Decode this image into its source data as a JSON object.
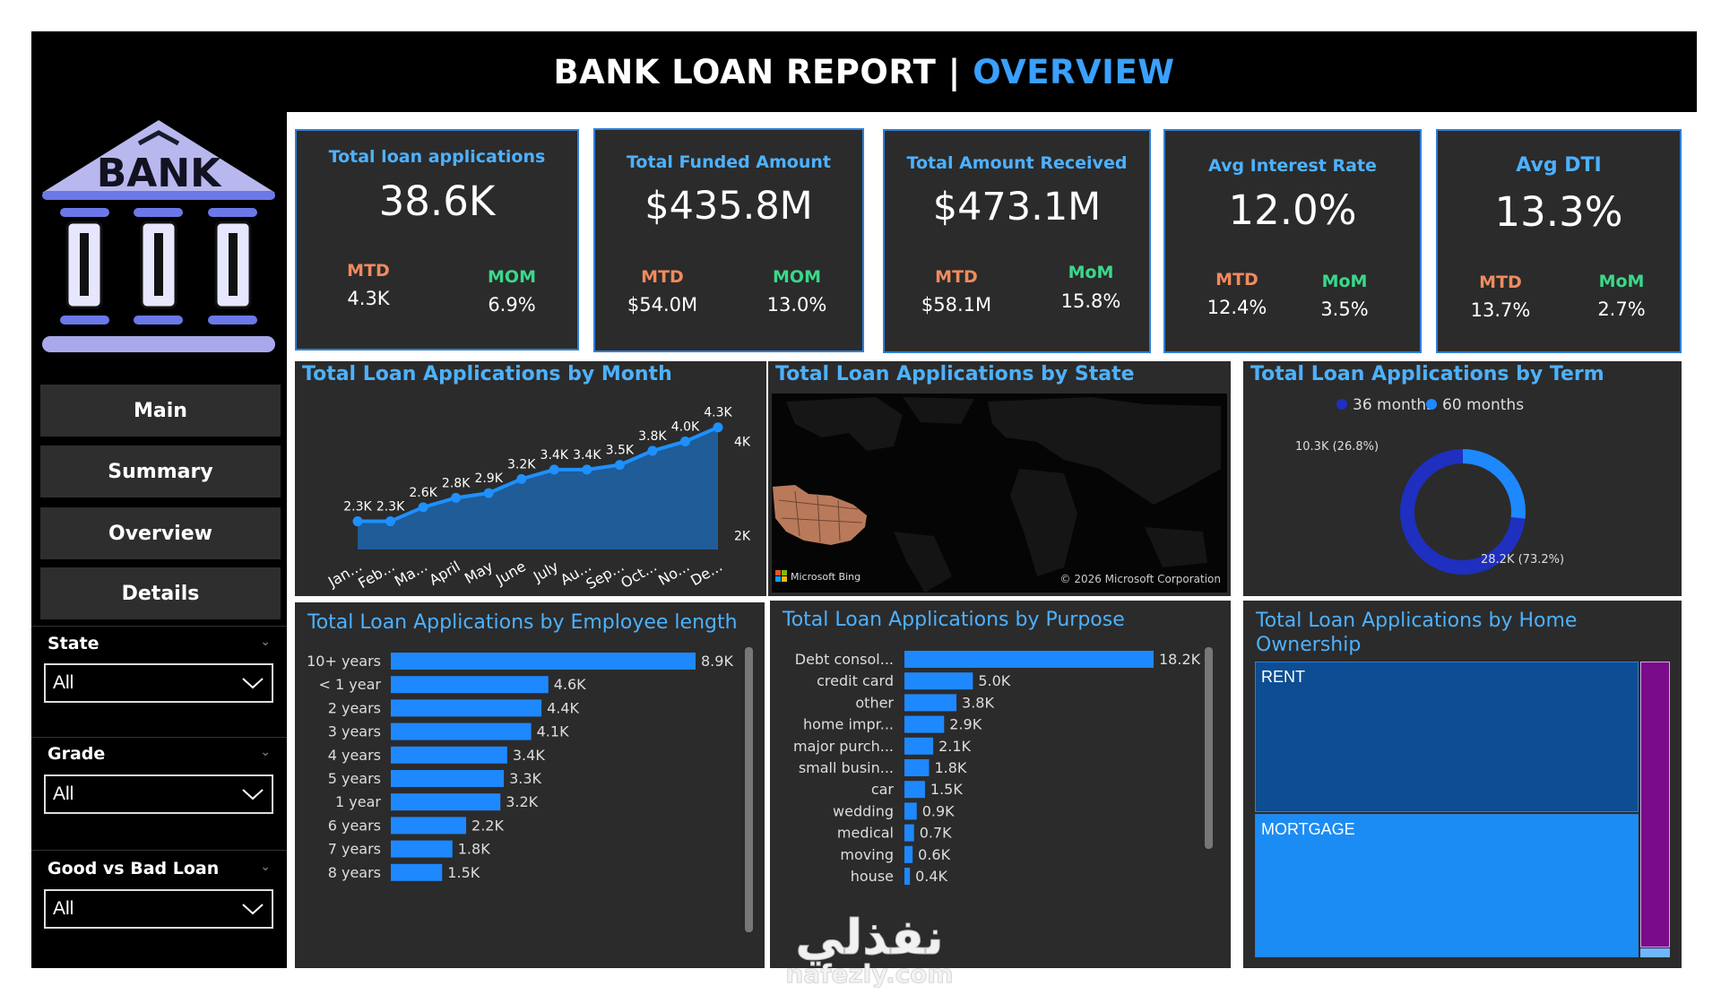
{
  "header": {
    "title_main": "BANK LOAN REPORT | ",
    "title_accent": "OVERVIEW"
  },
  "logo": {
    "text": "BANK"
  },
  "nav": [
    {
      "label": "Main"
    },
    {
      "label": "Summary"
    },
    {
      "label": "Overview"
    },
    {
      "label": "Details"
    }
  ],
  "slicers": [
    {
      "label": "State",
      "value": "All"
    },
    {
      "label": "Grade",
      "value": "All"
    },
    {
      "label": "Good vs Bad Loan",
      "value": "All"
    }
  ],
  "kpis": [
    {
      "title": "Total loan applications",
      "value": "38.6K",
      "mtd_label": "MTD",
      "mtd": "4.3K",
      "mom_label": "MOM",
      "mom": "6.9%"
    },
    {
      "title": "Total Funded Amount",
      "value": "$435.8M",
      "mtd_label": "MTD",
      "mtd": "$54.0M",
      "mom_label": "MOM",
      "mom": "13.0%"
    },
    {
      "title": "Total Amount Received",
      "value": "$473.1M",
      "mtd_label": "MTD",
      "mtd": "$58.1M",
      "mom_label": "MoM",
      "mom": "15.8%"
    },
    {
      "title": "Avg Interest Rate",
      "value": "12.0%",
      "mtd_label": "MTD",
      "mtd": "12.4%",
      "mom_label": "MoM",
      "mom": "3.5%"
    },
    {
      "title": "Avg DTI",
      "value": "13.3%",
      "mtd_label": "MTD",
      "mtd": "13.7%",
      "mom_label": "MoM",
      "mom": "2.7%"
    }
  ],
  "panels": {
    "month": "Total Loan Applications by Month",
    "state": "Total Loan Applications by State",
    "term": "Total Loan Applications by Term",
    "emp": "Total Loan Applications by Employee length",
    "purpose": "Total Loan Applications by Purpose",
    "home": "Total Loan Applications by Home Ownership"
  },
  "map": {
    "bing": "Microsoft Bing",
    "copyright": "© 2026 Microsoft Corporation"
  },
  "colors": {
    "accent": "#1e90ff",
    "kpi_title": "#4db1ff",
    "mtd": "#f08a5d",
    "mom": "#39d98a",
    "term36": "#1f2fbf",
    "term60": "#1e88ff"
  },
  "watermark": {
    "arabic": "نفذلي",
    "latin": "nafezly.com"
  },
  "chart_data": [
    {
      "type": "area",
      "title": "Total Loan Applications by Month",
      "categories": [
        "Jan...",
        "Feb...",
        "Ma...",
        "April",
        "May",
        "June",
        "July",
        "Au...",
        "Sep...",
        "Oct...",
        "No...",
        "De..."
      ],
      "values": [
        2.3,
        2.3,
        2.6,
        2.8,
        2.9,
        3.2,
        3.4,
        3.4,
        3.5,
        3.8,
        4.0,
        4.3
      ],
      "labels": [
        "2.3K",
        "2.3K",
        "2.6K",
        "2.8K",
        "2.9K",
        "3.2K",
        "3.4K",
        "3.4K",
        "3.5K",
        "3.8K",
        "4.0K",
        "4.3K"
      ],
      "y_ticks": [
        "4K",
        "2K"
      ],
      "ylim": [
        1.7,
        4.6
      ]
    },
    {
      "type": "pie",
      "title": "Total Loan Applications by Term",
      "legend": [
        "36 months",
        "60 months"
      ],
      "slices": [
        {
          "name": "36 months",
          "value": 28.2,
          "label": "28.2K (73.2%)"
        },
        {
          "name": "60 months",
          "value": 10.3,
          "label": "10.3K (26.8%)"
        }
      ]
    },
    {
      "type": "bar",
      "title": "Total Loan Applications by Employee length",
      "categories": [
        "10+ years",
        "< 1 year",
        "2 years",
        "3 years",
        "4 years",
        "5 years",
        "1 year",
        "6 years",
        "7 years",
        "8 years"
      ],
      "values": [
        8.9,
        4.6,
        4.4,
        4.1,
        3.4,
        3.3,
        3.2,
        2.2,
        1.8,
        1.5
      ],
      "labels": [
        "8.9K",
        "4.6K",
        "4.4K",
        "4.1K",
        "3.4K",
        "3.3K",
        "3.2K",
        "2.2K",
        "1.8K",
        "1.5K"
      ]
    },
    {
      "type": "bar",
      "title": "Total Loan Applications by Purpose",
      "categories": [
        "Debt consol...",
        "credit card",
        "other",
        "home impr...",
        "major purch...",
        "small busin...",
        "car",
        "wedding",
        "medical",
        "moving",
        "house"
      ],
      "values": [
        18.2,
        5.0,
        3.8,
        2.9,
        2.1,
        1.8,
        1.5,
        0.9,
        0.7,
        0.6,
        0.4
      ],
      "labels": [
        "18.2K",
        "5.0K",
        "3.8K",
        "2.9K",
        "2.1K",
        "1.8K",
        "1.5K",
        "0.9K",
        "0.7K",
        "0.6K",
        "0.4K"
      ]
    },
    {
      "type": "treemap",
      "title": "Total Loan Applications by Home Ownership",
      "categories": [
        "RENT",
        "MORTGAGE"
      ]
    }
  ]
}
